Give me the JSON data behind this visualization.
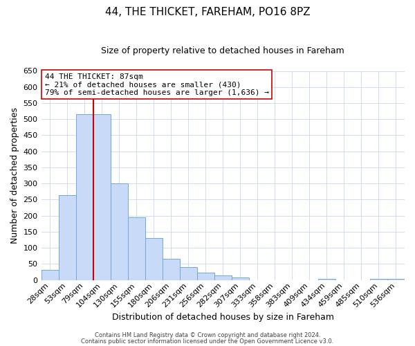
{
  "title": "44, THE THICKET, FAREHAM, PO16 8PZ",
  "subtitle": "Size of property relative to detached houses in Fareham",
  "xlabel": "Distribution of detached houses by size in Fareham",
  "ylabel": "Number of detached properties",
  "bar_labels": [
    "28sqm",
    "53sqm",
    "79sqm",
    "104sqm",
    "130sqm",
    "155sqm",
    "180sqm",
    "206sqm",
    "231sqm",
    "256sqm",
    "282sqm",
    "307sqm",
    "333sqm",
    "358sqm",
    "383sqm",
    "409sqm",
    "434sqm",
    "459sqm",
    "485sqm",
    "510sqm",
    "536sqm"
  ],
  "bar_heights": [
    32,
    263,
    515,
    515,
    300,
    196,
    131,
    65,
    40,
    23,
    15,
    8,
    0,
    0,
    0,
    0,
    3,
    0,
    0,
    3,
    3
  ],
  "bar_color": "#c9daf8",
  "bar_edge_color": "#6fa8dc",
  "vline_x": 2.5,
  "vline_color": "#cc0000",
  "ylim": [
    0,
    650
  ],
  "yticks": [
    0,
    50,
    100,
    150,
    200,
    250,
    300,
    350,
    400,
    450,
    500,
    550,
    600,
    650
  ],
  "annotation_text": "44 THE THICKET: 87sqm\n← 21% of detached houses are smaller (430)\n79% of semi-detached houses are larger (1,636) →",
  "annotation_box_color": "#ffffff",
  "annotation_box_edge": "#cc0000",
  "footer_line1": "Contains HM Land Registry data © Crown copyright and database right 2024.",
  "footer_line2": "Contains public sector information licensed under the Open Government Licence v3.0.",
  "background_color": "#ffffff",
  "grid_color": "#c8d8ec",
  "title_fontsize": 11,
  "subtitle_fontsize": 9,
  "axis_label_fontsize": 9,
  "tick_fontsize": 8,
  "annotation_fontsize": 8,
  "footer_fontsize": 6
}
